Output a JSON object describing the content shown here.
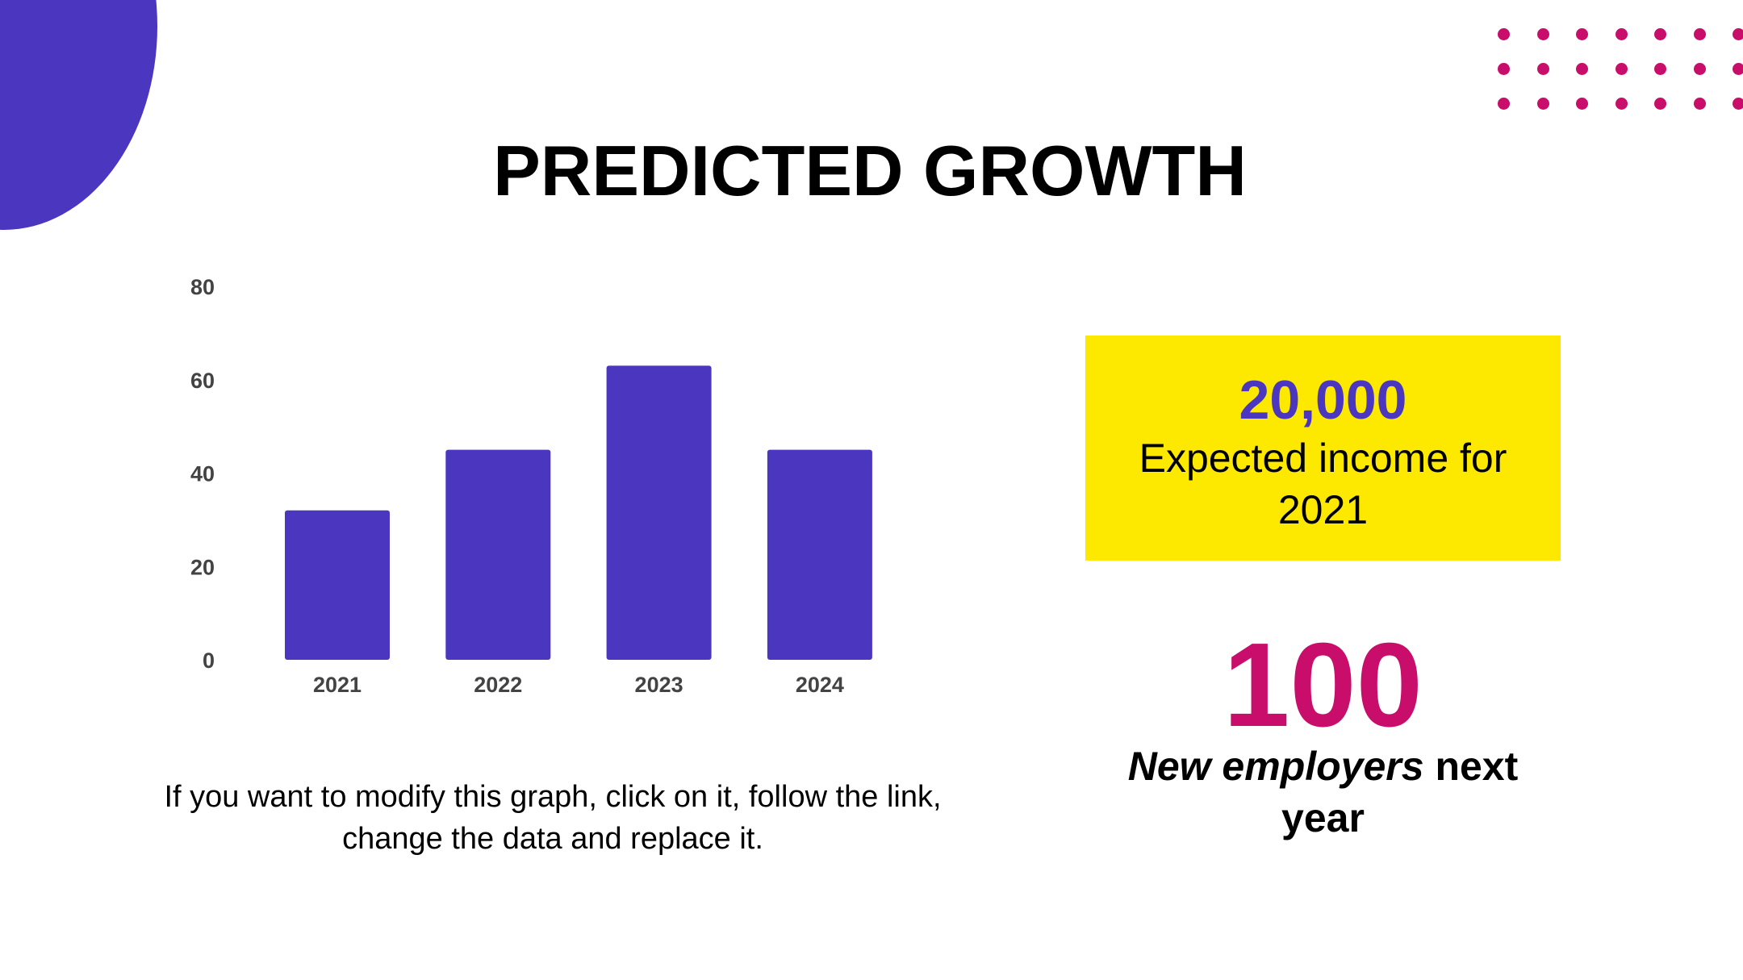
{
  "colors": {
    "accent_purple": "#4a36bf",
    "accent_magenta": "#c80d6a",
    "highlight_yellow": "#fde800",
    "text": "#000000",
    "axis_text": "#434343"
  },
  "slide": {
    "title": "PREDICTED GROWTH",
    "caption": "If you want to modify this graph, click on it, follow the link, change the data and replace it."
  },
  "stats": {
    "income": {
      "value": "20,000",
      "label": "Expected income for 2021"
    },
    "employers": {
      "value": "100",
      "label_emphasis": "New employers",
      "label_rest": " next year"
    }
  },
  "chart_data": {
    "type": "bar",
    "title": "",
    "xlabel": "",
    "ylabel": "",
    "categories": [
      "2021",
      "2022",
      "2023",
      "2024"
    ],
    "values": [
      32,
      45,
      63,
      45
    ],
    "ylim": [
      0,
      80
    ],
    "yticks": [
      0,
      20,
      40,
      60,
      80
    ],
    "grid": false,
    "legend": "none"
  }
}
